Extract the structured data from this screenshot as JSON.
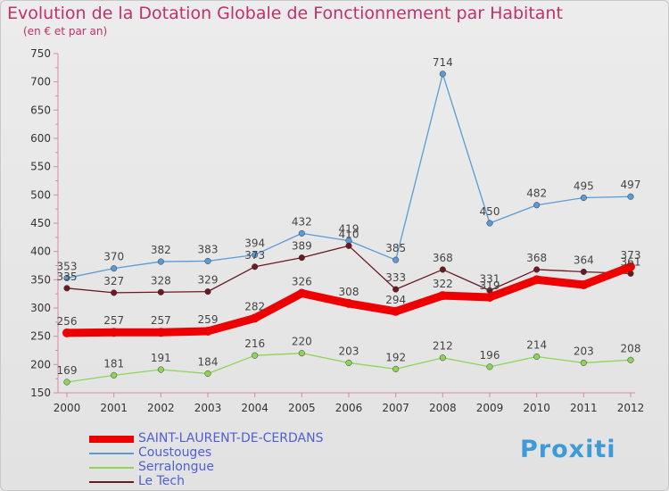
{
  "title": "Evolution de la Dotation Globale de Fonctionnement par Habitant",
  "subtitle": "(en € et par an)",
  "logo_text": "Proxiti",
  "chart_data": {
    "type": "line",
    "title": "Evolution de la Dotation Globale de Fonctionnement par Habitant",
    "subtitle": "(en € et par an)",
    "x": [
      2000,
      2001,
      2002,
      2003,
      2004,
      2005,
      2006,
      2007,
      2008,
      2009,
      2010,
      2011,
      2012
    ],
    "ylim": [
      150,
      750
    ],
    "yticks": [
      150,
      200,
      250,
      300,
      350,
      400,
      450,
      500,
      550,
      600,
      650,
      700,
      750
    ],
    "grid": false,
    "legend_position": "bottom-left",
    "series": [
      {
        "name": "SAINT-LAURENT-DE-CERDANS",
        "color": "#ee0000",
        "values": [
          256,
          257,
          257,
          259,
          282,
          326,
          308,
          294,
          322,
          319,
          350,
          341,
          373
        ],
        "labels": [
          "256",
          "257",
          "257",
          "259",
          "282",
          "326",
          "308",
          "294",
          "322",
          "319",
          "",
          "",
          "373"
        ]
      },
      {
        "name": "Coustouges",
        "color": "#5b9bd5",
        "values": [
          353,
          370,
          382,
          383,
          394,
          432,
          419,
          385,
          714,
          450,
          482,
          495,
          497
        ],
        "labels": [
          "353",
          "370",
          "382",
          "383",
          "394",
          "432",
          "419",
          "385",
          "714",
          "450",
          "482",
          "495",
          "497"
        ]
      },
      {
        "name": "Serralongue",
        "color": "#8ed45a",
        "values": [
          169,
          181,
          191,
          184,
          216,
          220,
          203,
          192,
          212,
          196,
          214,
          203,
          208
        ],
        "labels": [
          "169",
          "181",
          "191",
          "184",
          "216",
          "220",
          "203",
          "192",
          "212",
          "196",
          "214",
          "203",
          "208"
        ]
      },
      {
        "name": "Le Tech",
        "color": "#6b1a24",
        "values": [
          335,
          327,
          328,
          329,
          373,
          389,
          410,
          333,
          368,
          331,
          368,
          364,
          361
        ],
        "labels": [
          "335",
          "327",
          "328",
          "329",
          "373",
          "389",
          "410",
          "333",
          "368",
          "331",
          "368",
          "364",
          "361"
        ]
      }
    ]
  }
}
